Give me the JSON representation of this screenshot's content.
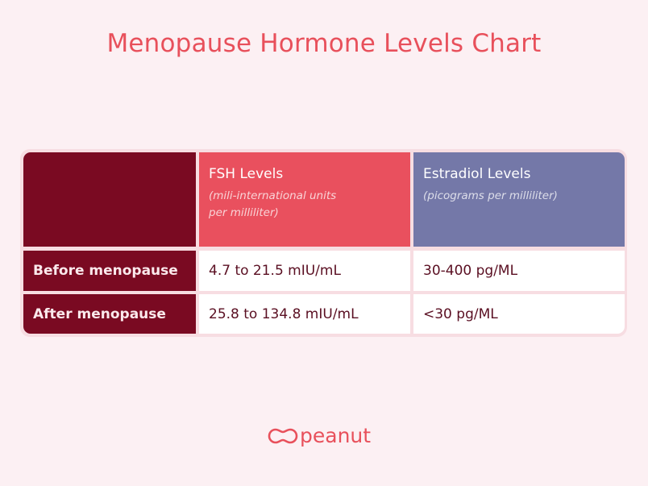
{
  "title": "Menopause Hormone Levels Chart",
  "colors": {
    "title": "#e8505b",
    "row_header": "#7a0a22",
    "fsh_header": "#e9505e",
    "estradiol_header": "#7478a8"
  },
  "chart_data": {
    "type": "table",
    "title": "Menopause Hormone Levels Chart",
    "columns": [
      {
        "label": "",
        "unit": ""
      },
      {
        "label": "FSH Levels",
        "unit": "(mili-international units per milliliter)"
      },
      {
        "label": "Estradiol Levels",
        "unit": "(picograms per milliliter)"
      }
    ],
    "rows": [
      {
        "label": "Before menopause",
        "fsh": "4.7 to 21.5 mIU/mL",
        "estradiol": "30-400 pg/ML"
      },
      {
        "label": "After menopause",
        "fsh": "25.8 to 134.8 mIU/mL",
        "estradiol": "<30 pg/ML"
      }
    ]
  },
  "logo": {
    "text": "peanut",
    "icon": "peanut-icon"
  }
}
